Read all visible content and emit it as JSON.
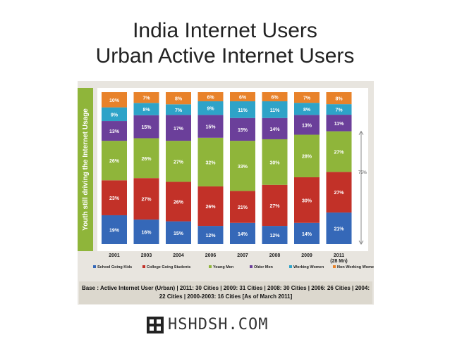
{
  "title_line1": "India Internet Users",
  "title_line2": "Urban Active Internet Users",
  "chart_data": {
    "type": "bar",
    "stacked": true,
    "percent": true,
    "categories": [
      "2001",
      "2003",
      "2004",
      "2006",
      "2007",
      "2008",
      "2009",
      "2011"
    ],
    "category_sublabels": [
      "",
      "",
      "",
      "",
      "",
      "",
      "",
      "(28 Mn)"
    ],
    "ylabel": "Youth still driving the Internet Usage",
    "series": [
      {
        "name": "School Going Kids",
        "color": "#3568b8",
        "values": [
          19,
          16,
          15,
          12,
          14,
          12,
          14,
          21
        ]
      },
      {
        "name": "College Going Students",
        "color": "#c23128",
        "values": [
          23,
          27,
          26,
          26,
          21,
          27,
          30,
          27
        ]
      },
      {
        "name": "Young Men",
        "color": "#8fb53a",
        "values": [
          26,
          26,
          27,
          32,
          33,
          30,
          28,
          27
        ]
      },
      {
        "name": "Older Men",
        "color": "#6b3f9a",
        "values": [
          13,
          15,
          17,
          15,
          15,
          14,
          13,
          11
        ]
      },
      {
        "name": "Working Women",
        "color": "#2ea3c8",
        "values": [
          9,
          8,
          7,
          9,
          11,
          11,
          8,
          7
        ]
      },
      {
        "name": "Non Working Women",
        "color": "#e8822a",
        "values": [
          10,
          7,
          8,
          6,
          6,
          6,
          7,
          8
        ]
      }
    ],
    "annotation": "75%",
    "caption": "Base : Active Internet User (Urban) | 2011: 30 Cities | 2009: 31 Cities | 2008: 30 Cities | 2006: 26 Cities | 2004: 22 Cities | 2000-2003: 16 Cities [As of March 2011]"
  },
  "watermark": "HSHDSH.COM"
}
